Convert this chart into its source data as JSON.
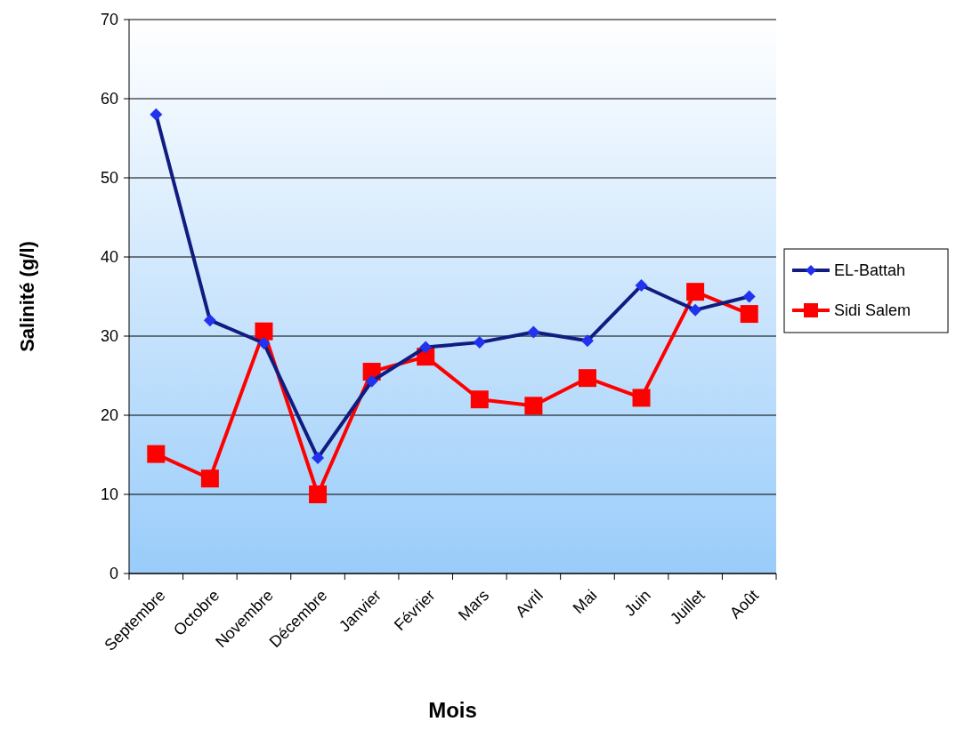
{
  "chart_data": {
    "type": "line",
    "xlabel": "Mois",
    "ylabel": "Salinité (g/l)",
    "categories": [
      "Septembre",
      "Octobre",
      "Novembre",
      "Décembre",
      "Janvier",
      "Février",
      "Mars",
      "Avril",
      "Mai",
      "Juin",
      "Juillet",
      "Août"
    ],
    "series": [
      {
        "name": "EL-Battah",
        "color": "#101c80",
        "marker": "diamond",
        "values": [
          58,
          32,
          29.1,
          14.6,
          24.3,
          28.6,
          29.2,
          30.5,
          29.4,
          36.4,
          33.3,
          35
        ]
      },
      {
        "name": "Sidi Salem",
        "color": "#ff0000",
        "marker": "square",
        "values": [
          15.1,
          12,
          30.6,
          10,
          25.5,
          27.4,
          22,
          21.2,
          24.7,
          22.2,
          35.6,
          32.8
        ]
      }
    ],
    "ylim": [
      0,
      70
    ],
    "yticks": [
      0,
      10,
      20,
      30,
      40,
      50,
      60,
      70
    ],
    "grid": "y",
    "legend": "right",
    "line_style": "solid"
  }
}
